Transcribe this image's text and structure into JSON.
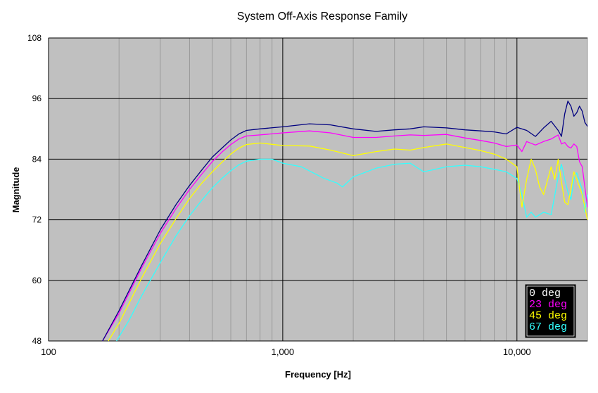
{
  "chart_data": {
    "type": "line",
    "title": "System Off-Axis Response Family",
    "xlabel": "Frequency [Hz]",
    "ylabel": "Magnitude",
    "x_scale": "log",
    "xlim": [
      100,
      20000
    ],
    "ylim": [
      48,
      108
    ],
    "x_ticks": [
      100,
      1000,
      10000
    ],
    "x_tick_labels": [
      "100",
      "1,000",
      "10,000"
    ],
    "y_ticks": [
      48,
      60,
      72,
      84,
      96,
      108
    ],
    "y_tick_labels": [
      "48",
      "60",
      "72",
      "84",
      "96",
      "108"
    ],
    "grid": true,
    "legend_position": "bottom-right",
    "plot_background": "#c0c0c0",
    "series": [
      {
        "name": "0 deg",
        "color": "#000080",
        "points": [
          [
            170,
            48
          ],
          [
            200,
            54
          ],
          [
            250,
            63
          ],
          [
            300,
            70
          ],
          [
            350,
            75
          ],
          [
            400,
            78.8
          ],
          [
            450,
            81.8
          ],
          [
            500,
            84.4
          ],
          [
            550,
            86.2
          ],
          [
            600,
            87.8
          ],
          [
            650,
            89
          ],
          [
            700,
            89.7
          ],
          [
            800,
            90
          ],
          [
            1000,
            90.4
          ],
          [
            1300,
            91
          ],
          [
            1600,
            90.8
          ],
          [
            2000,
            90
          ],
          [
            2500,
            89.5
          ],
          [
            3000,
            89.8
          ],
          [
            3500,
            90
          ],
          [
            4000,
            90.4
          ],
          [
            5000,
            90.2
          ],
          [
            6000,
            89.8
          ],
          [
            7000,
            89.6
          ],
          [
            8000,
            89.4
          ],
          [
            9000,
            89
          ],
          [
            10000,
            90.3
          ],
          [
            11000,
            89.7
          ],
          [
            12000,
            88.5
          ],
          [
            13000,
            90.2
          ],
          [
            14000,
            91.5
          ],
          [
            15000,
            89.7
          ],
          [
            15500,
            88.5
          ],
          [
            16000,
            93
          ],
          [
            16500,
            95.5
          ],
          [
            17000,
            94.5
          ],
          [
            17500,
            92.5
          ],
          [
            18000,
            93.2
          ],
          [
            18500,
            94.5
          ],
          [
            19000,
            93.5
          ],
          [
            19500,
            91.3
          ],
          [
            20000,
            90.5
          ]
        ]
      },
      {
        "name": "23 deg",
        "color": "#ff00ff",
        "points": [
          [
            170,
            48
          ],
          [
            200,
            53.5
          ],
          [
            250,
            62.5
          ],
          [
            300,
            69.3
          ],
          [
            350,
            74.2
          ],
          [
            400,
            78
          ],
          [
            450,
            81
          ],
          [
            500,
            83.5
          ],
          [
            550,
            85.4
          ],
          [
            600,
            86.9
          ],
          [
            650,
            88
          ],
          [
            700,
            88.6
          ],
          [
            800,
            88.8
          ],
          [
            1000,
            89.2
          ],
          [
            1300,
            89.6
          ],
          [
            1600,
            89.2
          ],
          [
            2000,
            88.3
          ],
          [
            2500,
            88.3
          ],
          [
            3000,
            88.6
          ],
          [
            3500,
            88.8
          ],
          [
            4000,
            88.7
          ],
          [
            5000,
            88.9
          ],
          [
            6000,
            88.2
          ],
          [
            7000,
            87.7
          ],
          [
            8000,
            87.2
          ],
          [
            9000,
            86.5
          ],
          [
            10000,
            86.8
          ],
          [
            10500,
            85.5
          ],
          [
            11000,
            87.5
          ],
          [
            12000,
            86.8
          ],
          [
            13000,
            87.5
          ],
          [
            14000,
            88
          ],
          [
            15000,
            88.8
          ],
          [
            15500,
            87
          ],
          [
            16000,
            87.3
          ],
          [
            16500,
            86.5
          ],
          [
            17000,
            86.2
          ],
          [
            17500,
            87
          ],
          [
            18000,
            86.5
          ],
          [
            18500,
            83.5
          ],
          [
            19000,
            82.5
          ],
          [
            20000,
            74.5
          ]
        ]
      },
      {
        "name": "45 deg",
        "color": "#ffff00",
        "points": [
          [
            180,
            48
          ],
          [
            200,
            51.5
          ],
          [
            250,
            60.5
          ],
          [
            300,
            67.3
          ],
          [
            350,
            72.2
          ],
          [
            400,
            76.2
          ],
          [
            450,
            79.2
          ],
          [
            500,
            81.5
          ],
          [
            550,
            83.4
          ],
          [
            600,
            85
          ],
          [
            650,
            86.2
          ],
          [
            700,
            86.9
          ],
          [
            800,
            87.2
          ],
          [
            1000,
            86.7
          ],
          [
            1300,
            86.6
          ],
          [
            1600,
            85.8
          ],
          [
            2000,
            84.7
          ],
          [
            2500,
            85.5
          ],
          [
            3000,
            86
          ],
          [
            3500,
            85.8
          ],
          [
            4000,
            86.3
          ],
          [
            5000,
            87
          ],
          [
            6000,
            86.3
          ],
          [
            7000,
            85.7
          ],
          [
            8000,
            85
          ],
          [
            9000,
            84
          ],
          [
            10000,
            82.5
          ],
          [
            10500,
            74.5
          ],
          [
            11000,
            80
          ],
          [
            11500,
            84
          ],
          [
            12000,
            82
          ],
          [
            12500,
            78.5
          ],
          [
            13000,
            77
          ],
          [
            14000,
            82.5
          ],
          [
            14500,
            80
          ],
          [
            15000,
            84
          ],
          [
            15500,
            79.5
          ],
          [
            16000,
            75.5
          ],
          [
            16500,
            75
          ],
          [
            17000,
            78
          ],
          [
            17500,
            81.5
          ],
          [
            18000,
            80
          ],
          [
            19000,
            77
          ],
          [
            20000,
            72
          ]
        ]
      },
      {
        "name": "67 deg",
        "color": "#33ffff",
        "points": [
          [
            195,
            48
          ],
          [
            220,
            52
          ],
          [
            250,
            57
          ],
          [
            300,
            63.5
          ],
          [
            350,
            68.8
          ],
          [
            400,
            72.8
          ],
          [
            450,
            75.8
          ],
          [
            500,
            78.3
          ],
          [
            550,
            80.2
          ],
          [
            600,
            81.7
          ],
          [
            650,
            82.9
          ],
          [
            700,
            83.6
          ],
          [
            800,
            84
          ],
          [
            900,
            84
          ],
          [
            1000,
            83.2
          ],
          [
            1200,
            82.5
          ],
          [
            1500,
            80.2
          ],
          [
            1700,
            79.3
          ],
          [
            1800,
            78.5
          ],
          [
            2000,
            80.5
          ],
          [
            2500,
            82.2
          ],
          [
            3000,
            83
          ],
          [
            3500,
            83.2
          ],
          [
            4000,
            81.5
          ],
          [
            5000,
            82.5
          ],
          [
            6000,
            82.8
          ],
          [
            7000,
            82.5
          ],
          [
            8000,
            82
          ],
          [
            9000,
            81.5
          ],
          [
            10000,
            80.2
          ],
          [
            10500,
            77
          ],
          [
            11000,
            72.5
          ],
          [
            11500,
            73.5
          ],
          [
            12000,
            72.5
          ],
          [
            13000,
            73.5
          ],
          [
            14000,
            73
          ],
          [
            15000,
            80.5
          ],
          [
            15500,
            83
          ],
          [
            16000,
            80
          ],
          [
            16500,
            77.5
          ],
          [
            17000,
            76
          ],
          [
            17500,
            80
          ],
          [
            18000,
            81.3
          ],
          [
            19000,
            78
          ],
          [
            19500,
            73.5
          ],
          [
            20000,
            77
          ]
        ]
      }
    ]
  }
}
